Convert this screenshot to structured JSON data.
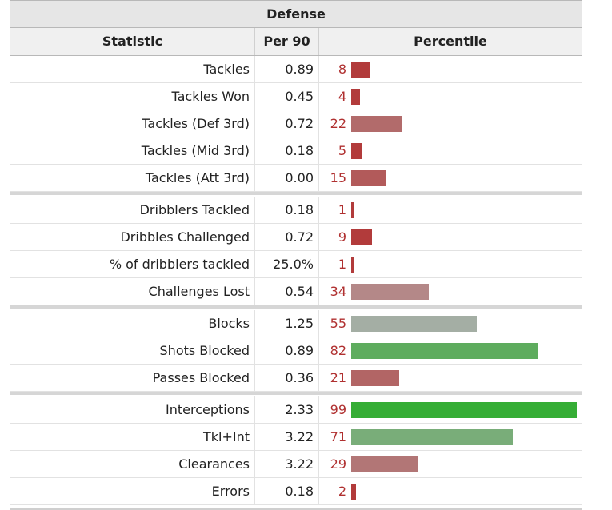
{
  "section_title": "Defense",
  "headers": {
    "statistic": "Statistic",
    "per90": "Per 90",
    "percentile": "Percentile"
  },
  "groups": [
    [
      {
        "stat": "Tackles",
        "per90": "0.89",
        "pct": "8",
        "pct_value": 8,
        "color": "#b23b3b"
      },
      {
        "stat": "Tackles Won",
        "per90": "0.45",
        "pct": "4",
        "pct_value": 4,
        "color": "#b23b3b"
      },
      {
        "stat": "Tackles (Def 3rd)",
        "per90": "0.72",
        "pct": "22",
        "pct_value": 22,
        "color": "#b26b6b"
      },
      {
        "stat": "Tackles (Mid 3rd)",
        "per90": "0.18",
        "pct": "5",
        "pct_value": 5,
        "color": "#b23b3b"
      },
      {
        "stat": "Tackles (Att 3rd)",
        "per90": "0.00",
        "pct": "15",
        "pct_value": 15,
        "color": "#b25a5a"
      }
    ],
    [
      {
        "stat": "Dribblers Tackled",
        "per90": "0.18",
        "pct": "1",
        "pct_value": 1,
        "color": "#b23b3b"
      },
      {
        "stat": "Dribbles Challenged",
        "per90": "0.72",
        "pct": "9",
        "pct_value": 9,
        "color": "#b23b3b"
      },
      {
        "stat": "% of dribblers tackled",
        "per90": "25.0%",
        "pct": "1",
        "pct_value": 1,
        "color": "#b23b3b"
      },
      {
        "stat": "Challenges Lost",
        "per90": "0.54",
        "pct": "34",
        "pct_value": 34,
        "color": "#b48888"
      }
    ],
    [
      {
        "stat": "Blocks",
        "per90": "1.25",
        "pct": "55",
        "pct_value": 55,
        "color": "#a4aea4"
      },
      {
        "stat": "Shots Blocked",
        "per90": "0.89",
        "pct": "82",
        "pct_value": 82,
        "color": "#5eac5e"
      },
      {
        "stat": "Passes Blocked",
        "per90": "0.36",
        "pct": "21",
        "pct_value": 21,
        "color": "#b26565"
      }
    ],
    [
      {
        "stat": "Interceptions",
        "per90": "2.33",
        "pct": "99",
        "pct_value": 99,
        "color": "#35ad35"
      },
      {
        "stat": "Tkl+Int",
        "per90": "3.22",
        "pct": "71",
        "pct_value": 71,
        "color": "#79ad79"
      },
      {
        "stat": "Clearances",
        "per90": "3.22",
        "pct": "29",
        "pct_value": 29,
        "color": "#b27676"
      },
      {
        "stat": "Errors",
        "per90": "0.18",
        "pct": "2",
        "pct_value": 2,
        "color": "#b23b3b"
      }
    ]
  ]
}
